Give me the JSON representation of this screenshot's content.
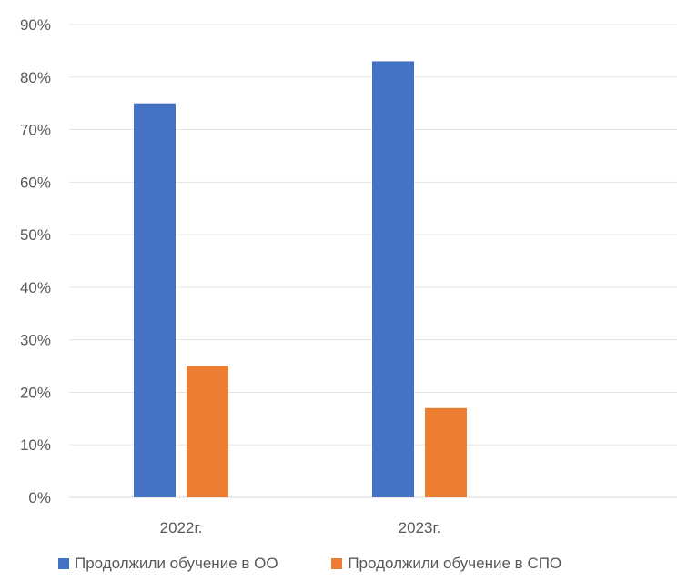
{
  "chart_data": {
    "type": "bar",
    "categories": [
      "2022г.",
      "2023г."
    ],
    "series": [
      {
        "name": "Продолжили обучение в ОО",
        "values": [
          75,
          83
        ],
        "color": "#4472C4"
      },
      {
        "name": "Продолжили обучение в СПО",
        "values": [
          25,
          17
        ],
        "color": "#ED7D31"
      }
    ],
    "title": "",
    "xlabel": "",
    "ylabel": "",
    "ylim": [
      0,
      90
    ],
    "yticks": [
      "0%",
      "10%",
      "20%",
      "30%",
      "40%",
      "50%",
      "60%",
      "70%",
      "80%",
      "90%"
    ],
    "grid": true,
    "legend": "bottom"
  }
}
